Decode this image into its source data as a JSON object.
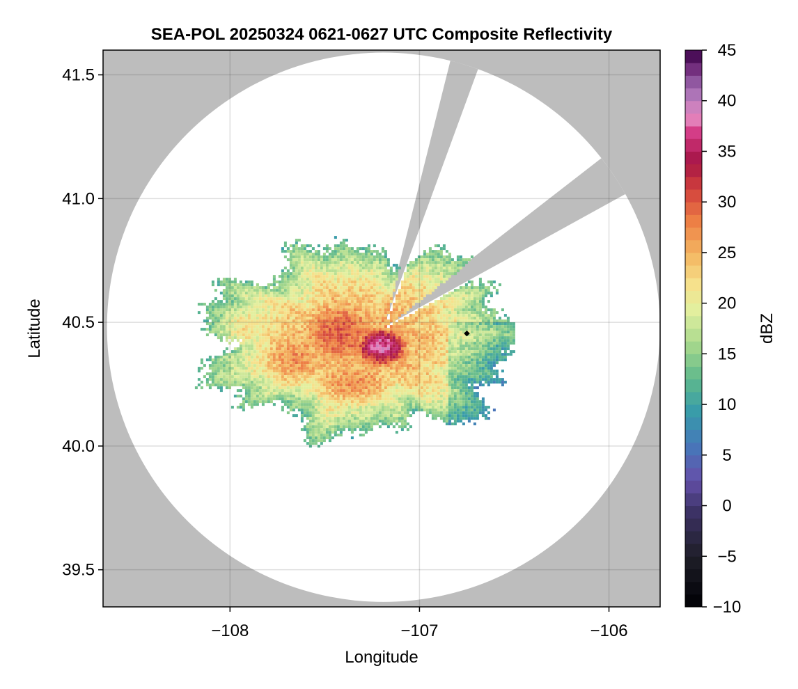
{
  "chart_data": {
    "type": "heatmap",
    "title": "SEA-POL 20250324 0621-0627 UTC Composite Reflectivity",
    "xlabel": "Longitude",
    "ylabel": "Latitude",
    "xlim": [
      -108.67,
      -105.73
    ],
    "ylim": [
      39.35,
      41.6
    ],
    "xticks": [
      -108,
      -107,
      -106
    ],
    "xtick_labels": [
      "−108",
      "−107",
      "−106"
    ],
    "yticks": [
      39.5,
      40.0,
      40.5,
      41.0,
      41.5
    ],
    "ytick_labels": [
      "39.5",
      "40.0",
      "40.5",
      "41.0",
      "41.5"
    ],
    "grid": true,
    "background_color": "#bdbdbd",
    "coverage_color": "#ffffff",
    "radar": {
      "center": [
        -107.19,
        40.48
      ],
      "max_range_lat_deg": 1.11,
      "blocked_sectors_deg": [
        [
          14,
          20
        ],
        [
          52,
          61
        ]
      ],
      "marker": [
        -106.75,
        40.455
      ]
    },
    "colorbar": {
      "label": "dBZ",
      "min": -10,
      "max": 45,
      "step": 1.25,
      "ticks": [
        -10,
        -5,
        0,
        5,
        10,
        15,
        20,
        25,
        30,
        35,
        40,
        45
      ],
      "tick_labels": [
        "−10",
        "−5",
        "0",
        "5",
        "10",
        "15",
        "20",
        "25",
        "30",
        "35",
        "40",
        "45"
      ],
      "colormap": "spectral_reversed"
    },
    "echo_cores": [
      {
        "center": [
          -107.2,
          40.4
        ],
        "radius": [
          0.12,
          0.07
        ],
        "peak_dbz": 38
      },
      {
        "center": [
          -107.42,
          40.46
        ],
        "radius": [
          0.25,
          0.15
        ],
        "peak_dbz": 30
      },
      {
        "center": [
          -107.65,
          40.36
        ],
        "radius": [
          0.25,
          0.15
        ],
        "peak_dbz": 27
      },
      {
        "center": [
          -107.35,
          40.26
        ],
        "radius": [
          0.28,
          0.12
        ],
        "peak_dbz": 27
      },
      {
        "center": [
          -107.9,
          40.48
        ],
        "radius": [
          0.2,
          0.13
        ],
        "peak_dbz": 22
      },
      {
        "center": [
          -106.9,
          40.52
        ],
        "radius": [
          0.2,
          0.08
        ],
        "peak_dbz": 21
      }
    ]
  }
}
